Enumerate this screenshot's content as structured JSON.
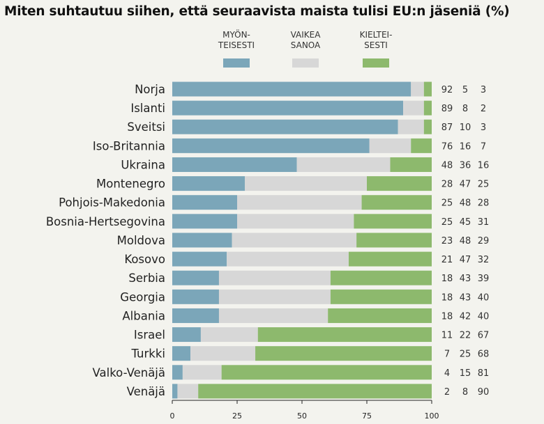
{
  "chart_data": {
    "type": "bar",
    "orientation": "horizontal-stacked",
    "title": "Miten suhtautuu siihen, että seuraavista maista tulisi EU:n jäseniä (%)",
    "xlim": [
      0,
      100
    ],
    "xticks": [
      0,
      25,
      50,
      75,
      100
    ],
    "legend_position": "top",
    "categories": [
      "Norja",
      "Islanti",
      "Sveitsi",
      "Iso-Britannia",
      "Ukraina",
      "Montenegro",
      "Pohjois-Makedonia",
      "Bosnia-Hertsegovina",
      "Moldova",
      "Kosovo",
      "Serbia",
      "Georgia",
      "Albania",
      "Israel",
      "Turkki",
      "Valko-Venäjä",
      "Venäjä"
    ],
    "series": [
      {
        "name": "MYÖN-\nTEISESTI",
        "label_lines": [
          "MYÖN-",
          "TEISESTI"
        ],
        "color": "#7ba6b9",
        "values": [
          92,
          89,
          87,
          76,
          48,
          28,
          25,
          25,
          23,
          21,
          18,
          18,
          18,
          11,
          7,
          4,
          2
        ]
      },
      {
        "name": "VAIKEA\nSANOA",
        "label_lines": [
          "VAIKEA",
          "SANOA"
        ],
        "color": "#d7d7d7",
        "values": [
          5,
          8,
          10,
          16,
          36,
          47,
          48,
          45,
          48,
          47,
          43,
          43,
          42,
          22,
          25,
          15,
          8
        ]
      },
      {
        "name": "KIELTEI-\nSESTI",
        "label_lines": [
          "KIELTEI-",
          "SESTI"
        ],
        "color": "#8db96d",
        "values": [
          3,
          2,
          3,
          7,
          16,
          25,
          28,
          31,
          29,
          32,
          39,
          40,
          40,
          67,
          68,
          81,
          90
        ]
      }
    ]
  }
}
